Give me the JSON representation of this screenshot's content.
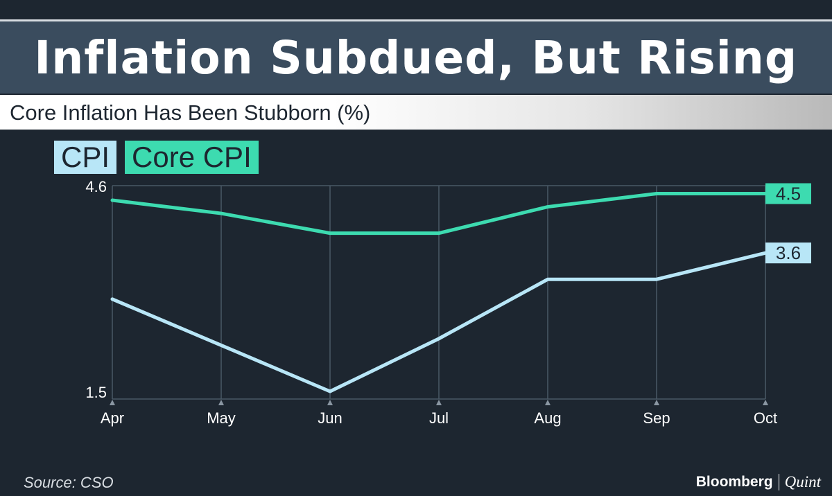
{
  "header": {
    "title": "Inflation Subdued, But Rising",
    "subtitle": "Core Inflation Has Been Stubborn (%)"
  },
  "footer": {
    "source": "Source: CSO",
    "brand_primary": "Bloomberg",
    "brand_secondary": "Quint"
  },
  "chart_data": {
    "type": "line",
    "categories": [
      "Apr",
      "May",
      "Jun",
      "Jul",
      "Aug",
      "Sep",
      "Oct"
    ],
    "ylim": [
      1.5,
      4.6
    ],
    "ytick_labels": [
      "4.6",
      "1.5"
    ],
    "grid": true,
    "legend_position": "top-left",
    "series": [
      {
        "name": "CPI",
        "color": "#b8e6f7",
        "values": [
          2.9,
          2.2,
          1.5,
          2.3,
          3.2,
          3.2,
          3.6
        ],
        "end_label": "3.6"
      },
      {
        "name": "Core CPI",
        "color": "#3ddbb0",
        "values": [
          4.4,
          4.2,
          3.9,
          3.9,
          4.3,
          4.5,
          4.5
        ],
        "end_label": "4.5"
      }
    ]
  }
}
